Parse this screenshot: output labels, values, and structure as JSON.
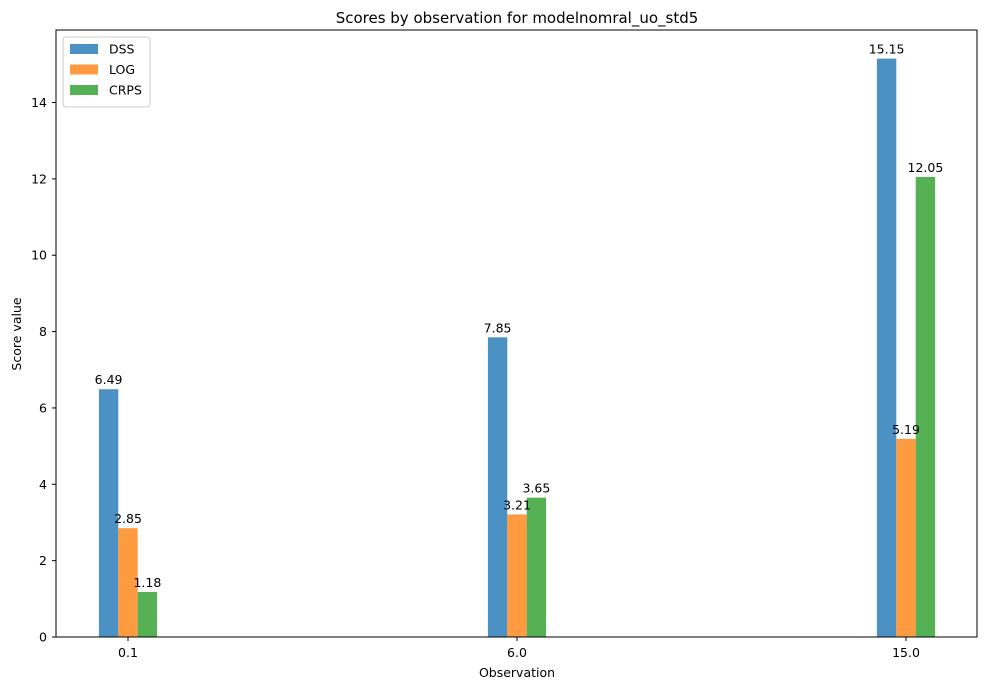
{
  "chart_data": {
    "type": "bar",
    "title": "Scores by observation for modelnomral_uo_std5",
    "xlabel": "Observation",
    "ylabel": "Score value",
    "categories": [
      "0.1",
      "6.0",
      "15.0"
    ],
    "series": [
      {
        "name": "DSS",
        "values": [
          6.49,
          7.85,
          15.15
        ],
        "labels": [
          "6.49",
          "7.85",
          "15.15"
        ],
        "color": "#4c91c3"
      },
      {
        "name": "LOG",
        "values": [
          2.85,
          3.21,
          5.19
        ],
        "labels": [
          "2.85",
          "3.21",
          "5.19"
        ],
        "color": "#fe9a3f"
      },
      {
        "name": "CRPS",
        "values": [
          1.18,
          3.65,
          12.05
        ],
        "labels": [
          "1.18",
          "3.65",
          "12.05"
        ],
        "color": "#55b154"
      }
    ],
    "ylim": [
      0,
      15.9
    ],
    "yticks": [
      0,
      2,
      4,
      6,
      8,
      10,
      12,
      14
    ],
    "grid": false,
    "legend_position": "top-left"
  }
}
